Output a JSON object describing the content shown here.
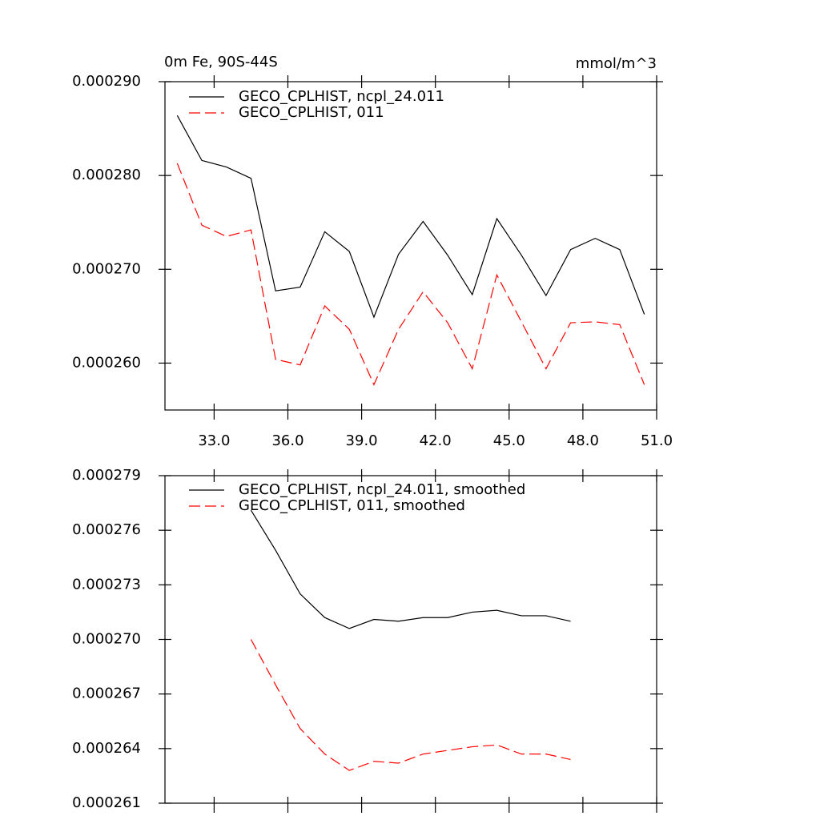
{
  "chart_data": [
    {
      "type": "line",
      "title": "0m Fe, 90S-44S",
      "units": "mmol/m^3",
      "x": [
        31.5,
        32.5,
        33.5,
        34.5,
        35.5,
        36.5,
        37.5,
        38.5,
        39.5,
        40.5,
        41.5,
        42.5,
        43.5,
        44.5,
        45.5,
        46.5,
        47.5,
        48.5,
        49.5,
        50.5
      ],
      "series": [
        {
          "name": "GECO_CPLHIST, ncpl_24.011",
          "color": "#000000",
          "dash": "solid",
          "values": [
            0.0002864,
            0.0002816,
            0.0002809,
            0.0002797,
            0.0002677,
            0.0002681,
            0.000274,
            0.0002719,
            0.0002649,
            0.0002716,
            0.0002751,
            0.0002715,
            0.0002673,
            0.0002754,
            0.0002715,
            0.0002672,
            0.0002721,
            0.0002733,
            0.0002721,
            0.0002652
          ]
        },
        {
          "name": "GECO_CPLHIST, 011",
          "color": "#ff0000",
          "dash": "dashed",
          "values": [
            0.0002813,
            0.0002747,
            0.0002735,
            0.0002742,
            0.0002604,
            0.0002598,
            0.0002661,
            0.0002636,
            0.0002577,
            0.0002636,
            0.0002676,
            0.0002643,
            0.0002594,
            0.0002694,
            0.0002644,
            0.0002594,
            0.0002643,
            0.0002644,
            0.0002641,
            0.0002577
          ]
        }
      ],
      "xlim": [
        31,
        51
      ],
      "xticks": [
        {
          "value": 33,
          "label": "33.0"
        },
        {
          "value": 36,
          "label": "36.0"
        },
        {
          "value": 39,
          "label": "39.0"
        },
        {
          "value": 42,
          "label": "42.0"
        },
        {
          "value": 45,
          "label": "45.0"
        },
        {
          "value": 48,
          "label": "48.0"
        },
        {
          "value": 51,
          "label": "51.0"
        }
      ],
      "ylim": [
        0.000255,
        0.00029
      ],
      "yticks": [
        {
          "value": 0.00026,
          "label": "0.000260"
        },
        {
          "value": 0.00027,
          "label": "0.000270"
        },
        {
          "value": 0.00028,
          "label": "0.000280"
        },
        {
          "value": 0.00029,
          "label": "0.000290"
        }
      ],
      "grid": false
    },
    {
      "type": "line",
      "x": [
        34.5,
        35.5,
        36.5,
        37.5,
        38.5,
        39.5,
        40.5,
        41.5,
        42.5,
        43.5,
        44.5,
        45.5,
        46.5,
        47.5
      ],
      "series": [
        {
          "name": "GECO_CPLHIST, ncpl_24.011, smoothed",
          "color": "#000000",
          "dash": "solid",
          "values": [
            0.0002771,
            0.0002749,
            0.0002725,
            0.0002712,
            0.0002706,
            0.0002711,
            0.000271,
            0.0002712,
            0.0002712,
            0.0002715,
            0.0002716,
            0.0002713,
            0.0002713,
            0.000271
          ]
        },
        {
          "name": "GECO_CPLHIST, 011, smoothed",
          "color": "#ff0000",
          "dash": "dashed",
          "values": [
            0.00027,
            0.0002675,
            0.0002651,
            0.0002637,
            0.0002628,
            0.0002633,
            0.0002632,
            0.0002637,
            0.0002639,
            0.0002641,
            0.0002642,
            0.0002637,
            0.0002637,
            0.0002634
          ]
        }
      ],
      "xlim": [
        31,
        51
      ],
      "xticks": [
        33,
        36,
        39,
        42,
        45,
        48,
        51
      ],
      "ylim": [
        0.000261,
        0.000279
      ],
      "yticks": [
        {
          "value": 0.000261,
          "label": "0.000261"
        },
        {
          "value": 0.000264,
          "label": "0.000264"
        },
        {
          "value": 0.000267,
          "label": "0.000267"
        },
        {
          "value": 0.00027,
          "label": "0.000270"
        },
        {
          "value": 0.000273,
          "label": "0.000273"
        },
        {
          "value": 0.000276,
          "label": "0.000276"
        },
        {
          "value": 0.000279,
          "label": "0.000279"
        }
      ],
      "grid": false
    }
  ]
}
